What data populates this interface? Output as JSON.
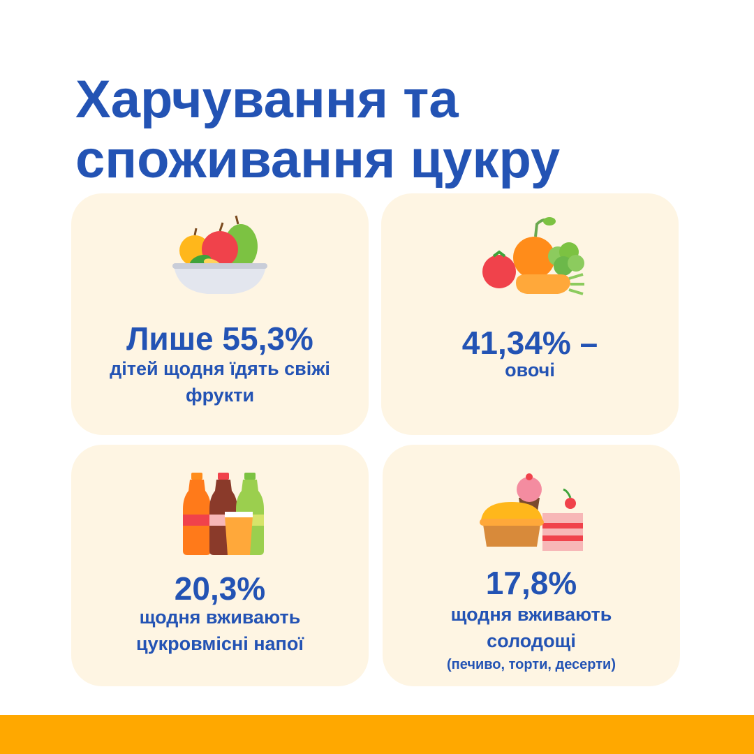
{
  "title_line1": "Харчування та",
  "title_line2": "споживання цукру",
  "cards": [
    {
      "stat": "Лише 55,3%",
      "desc_line1": "дітей щодня їдять свіжі",
      "desc_line2": "фрукти",
      "icon": "fruit-bowl-icon"
    },
    {
      "stat": "41,34% –",
      "desc_line1": "овочі",
      "icon": "vegetables-icon"
    },
    {
      "stat": "20,3%",
      "desc_line1": "щодня вживають",
      "desc_line2": "цукровмісні напої",
      "icon": "sugary-drinks-icon"
    },
    {
      "stat": "17,8%",
      "desc_line1": "щодня вживають",
      "desc_line2": "солодощі",
      "note": "(печиво, торти, десерти)",
      "icon": "desserts-icon"
    }
  ],
  "colors": {
    "title": "#2353b4",
    "card_bg": "#fef5e3",
    "bar": "#ffa800"
  }
}
